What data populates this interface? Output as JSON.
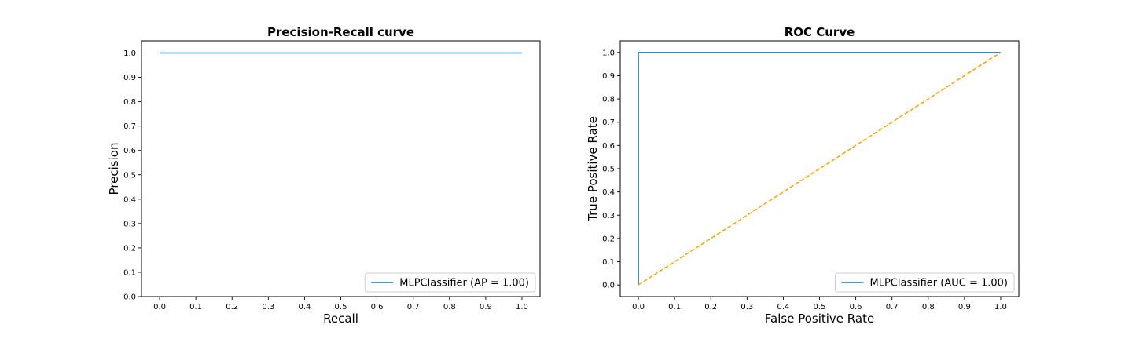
{
  "chart_data": [
    {
      "type": "line",
      "title": "Precision-Recall curve",
      "xlabel": "Recall",
      "ylabel": "Precision",
      "xlim": [
        -0.05,
        1.05
      ],
      "ylim": [
        0.0,
        1.05
      ],
      "xticks": [
        "0.0",
        "0.1",
        "0.2",
        "0.3",
        "0.4",
        "0.5",
        "0.6",
        "0.7",
        "0.8",
        "0.9",
        "1.0"
      ],
      "yticks": [
        "0.0",
        "0.1",
        "0.2",
        "0.3",
        "0.4",
        "0.5",
        "0.6",
        "0.7",
        "0.8",
        "0.9",
        "1.0"
      ],
      "grid": false,
      "legend_position": "lower-right",
      "series": [
        {
          "name": "MLPClassifier (AP = 1.00)",
          "color": "#1f77b4",
          "style": "solid",
          "x": [
            0.0,
            1.0
          ],
          "y": [
            1.0,
            1.0
          ]
        }
      ]
    },
    {
      "type": "line",
      "title": "ROC Curve",
      "xlabel": "False Positive Rate",
      "ylabel": "True Positive Rate",
      "xlim": [
        -0.05,
        1.05
      ],
      "ylim": [
        -0.05,
        1.05
      ],
      "xticks": [
        "0.0",
        "0.1",
        "0.2",
        "0.3",
        "0.4",
        "0.5",
        "0.6",
        "0.7",
        "0.8",
        "0.9",
        "1.0"
      ],
      "yticks": [
        "0.0",
        "0.1",
        "0.2",
        "0.3",
        "0.4",
        "0.5",
        "0.6",
        "0.7",
        "0.8",
        "0.9",
        "1.0"
      ],
      "grid": false,
      "legend_position": "lower-right",
      "series": [
        {
          "name": "MLPClassifier (AUC = 1.00)",
          "color": "#1f77b4",
          "style": "solid",
          "x": [
            0.0,
            0.0,
            1.0
          ],
          "y": [
            0.0,
            1.0,
            1.0
          ]
        },
        {
          "name": "",
          "color": "#ffa500",
          "style": "dashed",
          "x": [
            0.0,
            1.0
          ],
          "y": [
            0.0,
            1.0
          ]
        }
      ]
    }
  ]
}
